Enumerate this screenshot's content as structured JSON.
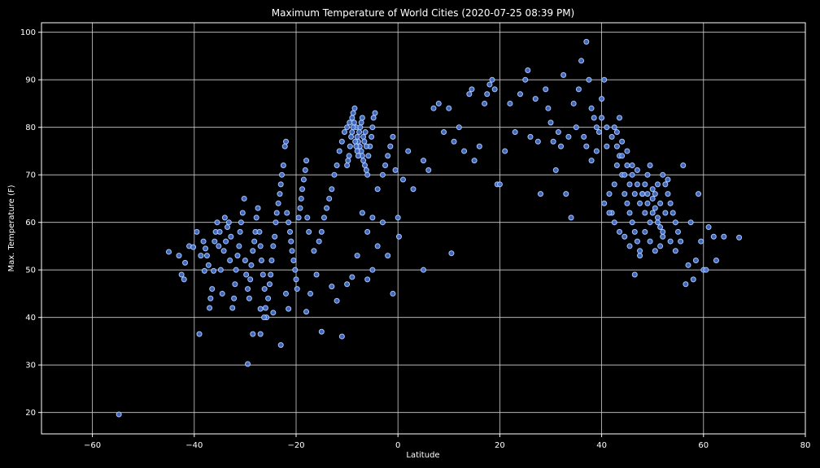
{
  "chart_data": {
    "type": "scatter",
    "title": "Maximum Temperature of World Cities (2020-07-25 08:39 PM)",
    "xlabel": "Latitude",
    "ylabel": "Max. Temperature (F)",
    "xlim": [
      -70,
      80
    ],
    "ylim": [
      15.5,
      102
    ],
    "xticks": [
      -60,
      -40,
      -20,
      0,
      20,
      40,
      60,
      80
    ],
    "yticks": [
      20,
      30,
      40,
      50,
      60,
      70,
      80,
      90,
      100
    ],
    "grid": true,
    "colors": {
      "background": "#000000",
      "point_fill": "#4a79d8",
      "point_edge": "#a9c4ff",
      "text": "#ffffff",
      "grid": "#cfcfcf"
    },
    "points": [
      [
        -54.8,
        19.6
      ],
      [
        -45,
        53.8
      ],
      [
        -43,
        53
      ],
      [
        -42.5,
        49
      ],
      [
        -42,
        48
      ],
      [
        -41.8,
        51.5
      ],
      [
        -41,
        55
      ],
      [
        -40.2,
        54.8
      ],
      [
        -39.5,
        58
      ],
      [
        -39,
        36.5
      ],
      [
        -38.7,
        53
      ],
      [
        -38.2,
        56
      ],
      [
        -38,
        49.8
      ],
      [
        -37.8,
        54.5
      ],
      [
        -37.5,
        53
      ],
      [
        -37.2,
        51
      ],
      [
        -37,
        42
      ],
      [
        -36.8,
        44
      ],
      [
        -36.5,
        46
      ],
      [
        -36.2,
        49.8
      ],
      [
        -36,
        56
      ],
      [
        -35.8,
        58
      ],
      [
        -35.5,
        60
      ],
      [
        -35.2,
        55
      ],
      [
        -35,
        58
      ],
      [
        -34.8,
        50
      ],
      [
        -34.5,
        45
      ],
      [
        -34.2,
        54
      ],
      [
        -34,
        61
      ],
      [
        -33.8,
        56
      ],
      [
        -33.5,
        59
      ],
      [
        -33.2,
        60
      ],
      [
        -33,
        52
      ],
      [
        -32.8,
        57
      ],
      [
        -32.5,
        42
      ],
      [
        -32.2,
        44
      ],
      [
        -32,
        47
      ],
      [
        -31.8,
        50
      ],
      [
        -31.5,
        53
      ],
      [
        -31.2,
        55
      ],
      [
        -31,
        58
      ],
      [
        -30.8,
        60
      ],
      [
        -30.5,
        62
      ],
      [
        -30.2,
        65
      ],
      [
        -30,
        52
      ],
      [
        -29.8,
        49
      ],
      [
        -29.5,
        46
      ],
      [
        -29.2,
        44
      ],
      [
        -29,
        48
      ],
      [
        -28.8,
        51
      ],
      [
        -28.5,
        54
      ],
      [
        -28.2,
        56
      ],
      [
        -28,
        58
      ],
      [
        -27.8,
        61
      ],
      [
        -27.5,
        63
      ],
      [
        -27.2,
        58
      ],
      [
        -27,
        55
      ],
      [
        -26.8,
        52
      ],
      [
        -26.5,
        49
      ],
      [
        -26.2,
        46
      ],
      [
        -26,
        42
      ],
      [
        -25.8,
        40
      ],
      [
        -25.5,
        44
      ],
      [
        -25.2,
        47
      ],
      [
        -25,
        49
      ],
      [
        -24.8,
        52
      ],
      [
        -24.5,
        55
      ],
      [
        -24.2,
        57
      ],
      [
        -24,
        60
      ],
      [
        -23.8,
        62
      ],
      [
        -23.5,
        64
      ],
      [
        -23.2,
        66
      ],
      [
        -23,
        68
      ],
      [
        -22.8,
        70
      ],
      [
        -22.5,
        72
      ],
      [
        -22.2,
        76
      ],
      [
        -22,
        77
      ],
      [
        -21.8,
        62
      ],
      [
        -21.5,
        60
      ],
      [
        -21.2,
        58
      ],
      [
        -21,
        56
      ],
      [
        -20.8,
        54
      ],
      [
        -20.5,
        52
      ],
      [
        -20.2,
        50
      ],
      [
        -20,
        48
      ],
      [
        -19.8,
        46
      ],
      [
        -19.5,
        61
      ],
      [
        -19.2,
        63
      ],
      [
        -19,
        65
      ],
      [
        -18.8,
        67
      ],
      [
        -18.5,
        69
      ],
      [
        -18.2,
        71
      ],
      [
        -18,
        73
      ],
      [
        -17.8,
        61
      ],
      [
        -17.5,
        58
      ],
      [
        -29.5,
        30.2
      ],
      [
        -27,
        36.5
      ],
      [
        -23,
        34.2
      ],
      [
        -21.5,
        41.8
      ],
      [
        -24.5,
        41
      ],
      [
        -28.5,
        36.5
      ],
      [
        -27,
        41.8
      ],
      [
        -26.3,
        40
      ],
      [
        -22,
        45
      ],
      [
        -18,
        41.2
      ],
      [
        -17.2,
        45
      ],
      [
        -16.5,
        54
      ],
      [
        -16,
        49
      ],
      [
        -15.5,
        56
      ],
      [
        -15,
        58
      ],
      [
        -14.5,
        61
      ],
      [
        -14,
        63
      ],
      [
        -13.5,
        65
      ],
      [
        -13,
        67
      ],
      [
        -12.5,
        70
      ],
      [
        -12,
        72
      ],
      [
        -11.5,
        75
      ],
      [
        -11,
        77
      ],
      [
        -10.5,
        79
      ],
      [
        -10,
        80
      ],
      [
        -9.5,
        81
      ],
      [
        -9,
        82
      ],
      [
        -8.8,
        83
      ],
      [
        -8.5,
        84
      ],
      [
        -8.2,
        80
      ],
      [
        -8,
        78
      ],
      [
        -7.8,
        77
      ],
      [
        -7.5,
        76
      ],
      [
        -7.2,
        75
      ],
      [
        -7,
        74
      ],
      [
        -6.8,
        73
      ],
      [
        -6.5,
        72
      ],
      [
        -6.2,
        71
      ],
      [
        -6,
        70
      ],
      [
        -5.8,
        74
      ],
      [
        -5.5,
        76
      ],
      [
        -5.2,
        78
      ],
      [
        -5,
        80
      ],
      [
        -4.8,
        82
      ],
      [
        -4.5,
        83
      ],
      [
        -9.4,
        76
      ],
      [
        -9.2,
        78
      ],
      [
        -9,
        79
      ],
      [
        -8.8,
        80
      ],
      [
        -8.6,
        81
      ],
      [
        -8.4,
        77
      ],
      [
        -8.2,
        76
      ],
      [
        -8,
        75
      ],
      [
        -7.8,
        74
      ],
      [
        -7.6,
        79
      ],
      [
        -7.4,
        80
      ],
      [
        -7.2,
        81
      ],
      [
        -7,
        82
      ],
      [
        -6.8,
        78
      ],
      [
        -6.6,
        77
      ],
      [
        -6.4,
        79
      ],
      [
        -6.2,
        76
      ],
      [
        -9.6,
        74
      ],
      [
        -9.8,
        73
      ],
      [
        -10,
        72
      ],
      [
        -15,
        37
      ],
      [
        -11,
        36
      ],
      [
        -12,
        43.5
      ],
      [
        -13,
        46.5
      ],
      [
        -10,
        47
      ],
      [
        -9,
        48.5
      ],
      [
        -8,
        53
      ],
      [
        -7,
        62
      ],
      [
        -6,
        58
      ],
      [
        -5,
        61
      ],
      [
        -4,
        67
      ],
      [
        -3,
        70
      ],
      [
        -2.5,
        72
      ],
      [
        -2,
        74
      ],
      [
        -1.5,
        76
      ],
      [
        -1,
        78
      ],
      [
        -0.5,
        71
      ],
      [
        0,
        61
      ],
      [
        0.2,
        57
      ],
      [
        -2,
        53
      ],
      [
        -3,
        60
      ],
      [
        -4,
        55
      ],
      [
        -1,
        45
      ],
      [
        -5,
        50
      ],
      [
        -6,
        48
      ],
      [
        1,
        69
      ],
      [
        2,
        75
      ],
      [
        3,
        67
      ],
      [
        5,
        50
      ],
      [
        5,
        73
      ],
      [
        6,
        71
      ],
      [
        7,
        84
      ],
      [
        8,
        85
      ],
      [
        9,
        79
      ],
      [
        10,
        84
      ],
      [
        10.5,
        53.5
      ],
      [
        11,
        77
      ],
      [
        12,
        80
      ],
      [
        13,
        75
      ],
      [
        14,
        87
      ],
      [
        14.5,
        88
      ],
      [
        15,
        73
      ],
      [
        16,
        76
      ],
      [
        17,
        85
      ],
      [
        17.5,
        87
      ],
      [
        18,
        89
      ],
      [
        18.5,
        90
      ],
      [
        19,
        88
      ],
      [
        19.5,
        68
      ],
      [
        20,
        68
      ],
      [
        21,
        75
      ],
      [
        22,
        85
      ],
      [
        23,
        79
      ],
      [
        24,
        87
      ],
      [
        25,
        90
      ],
      [
        25.5,
        92
      ],
      [
        26,
        78
      ],
      [
        27,
        86
      ],
      [
        27.5,
        77
      ],
      [
        28,
        66
      ],
      [
        29,
        88
      ],
      [
        29.5,
        84
      ],
      [
        30,
        81
      ],
      [
        30.5,
        77
      ],
      [
        31,
        71
      ],
      [
        31.5,
        79
      ],
      [
        32,
        76
      ],
      [
        32.5,
        91
      ],
      [
        33,
        66
      ],
      [
        33.5,
        78
      ],
      [
        34,
        61
      ],
      [
        34.5,
        85
      ],
      [
        35,
        80
      ],
      [
        35.5,
        88
      ],
      [
        36,
        94
      ],
      [
        36.5,
        78
      ],
      [
        37,
        98
      ],
      [
        37.5,
        90
      ],
      [
        38,
        84
      ],
      [
        38.5,
        82
      ],
      [
        39,
        80
      ],
      [
        39.5,
        79
      ],
      [
        40,
        86
      ],
      [
        40.5,
        90
      ],
      [
        41,
        76
      ],
      [
        41.5,
        66
      ],
      [
        42,
        62
      ],
      [
        42.5,
        68
      ],
      [
        43,
        72
      ],
      [
        43.5,
        74
      ],
      [
        44,
        70
      ],
      [
        44.5,
        66
      ],
      [
        45,
        64
      ],
      [
        45.5,
        62
      ],
      [
        46,
        60
      ],
      [
        46.5,
        58
      ],
      [
        47,
        56
      ],
      [
        47.5,
        54
      ],
      [
        48,
        66
      ],
      [
        48.5,
        68
      ],
      [
        49,
        70
      ],
      [
        49.5,
        72
      ],
      [
        50,
        65
      ],
      [
        50.5,
        63
      ],
      [
        51,
        61
      ],
      [
        51.5,
        59
      ],
      [
        52,
        57
      ],
      [
        52.5,
        68
      ],
      [
        53,
        66
      ],
      [
        53.5,
        64
      ],
      [
        54,
        62
      ],
      [
        54.5,
        60
      ],
      [
        55,
        58
      ],
      [
        55.5,
        56
      ],
      [
        56,
        72
      ],
      [
        56.5,
        47
      ],
      [
        57,
        51
      ],
      [
        57.5,
        60
      ],
      [
        58,
        48
      ],
      [
        58.5,
        52
      ],
      [
        59,
        66
      ],
      [
        59.5,
        56
      ],
      [
        60,
        50
      ],
      [
        60.5,
        50
      ],
      [
        61,
        59
      ],
      [
        62,
        57
      ],
      [
        62.5,
        52
      ],
      [
        64,
        57
      ],
      [
        67,
        56.8
      ],
      [
        42,
        78
      ],
      [
        43,
        76
      ],
      [
        44,
        74
      ],
      [
        45,
        72
      ],
      [
        46,
        70
      ],
      [
        47,
        68
      ],
      [
        48,
        66
      ],
      [
        49,
        64
      ],
      [
        50,
        62
      ],
      [
        51,
        60
      ],
      [
        52,
        58
      ],
      [
        42.5,
        80
      ],
      [
        43.5,
        82
      ],
      [
        44.5,
        70
      ],
      [
        45.5,
        68
      ],
      [
        46.5,
        66
      ],
      [
        47.5,
        64
      ],
      [
        48.5,
        62
      ],
      [
        49.5,
        60
      ],
      [
        50.5,
        66
      ],
      [
        51.5,
        64
      ],
      [
        40.5,
        64
      ],
      [
        41.5,
        62
      ],
      [
        42.5,
        60
      ],
      [
        43.5,
        58
      ],
      [
        44.5,
        57
      ],
      [
        45.5,
        55
      ],
      [
        46.5,
        49
      ],
      [
        47.5,
        53
      ],
      [
        48.5,
        58
      ],
      [
        49.5,
        56
      ],
      [
        50.5,
        54
      ],
      [
        51.5,
        55
      ],
      [
        52.5,
        62
      ],
      [
        53.5,
        56
      ],
      [
        54.5,
        54
      ],
      [
        53,
        69
      ],
      [
        52,
        70
      ],
      [
        51,
        68
      ],
      [
        50,
        67
      ],
      [
        49,
        66
      ],
      [
        47,
        71
      ],
      [
        46,
        72
      ],
      [
        45,
        75
      ],
      [
        44,
        77
      ],
      [
        43,
        79
      ],
      [
        41,
        80
      ],
      [
        40,
        82
      ],
      [
        39,
        75
      ],
      [
        38,
        73
      ],
      [
        37,
        76
      ]
    ]
  }
}
